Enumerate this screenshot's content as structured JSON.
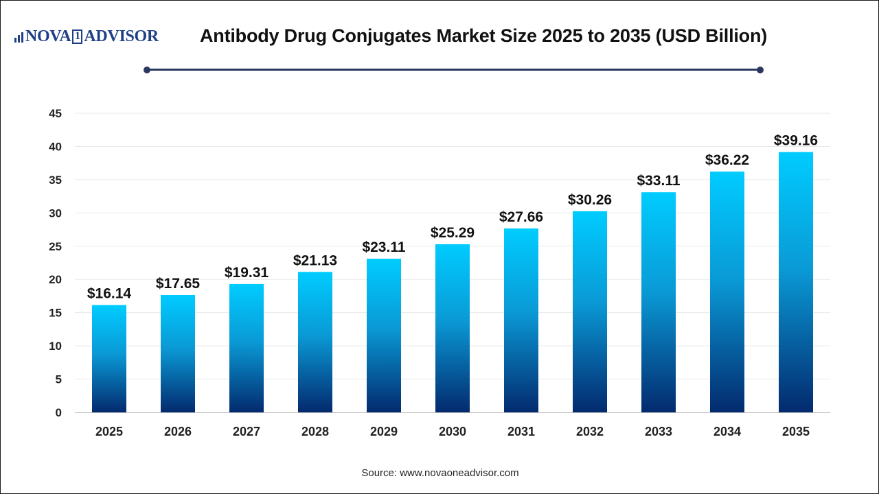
{
  "brand": {
    "name_left": "NOVA",
    "name_mid": "1",
    "name_right": "ADVISOR"
  },
  "chart_data": {
    "type": "bar",
    "title": "Antibody Drug Conjugates Market Size 2025 to 2035 (USD Billion)",
    "categories": [
      "2025",
      "2026",
      "2027",
      "2028",
      "2029",
      "2030",
      "2031",
      "2032",
      "2033",
      "2034",
      "2035"
    ],
    "values": [
      16.14,
      17.65,
      19.31,
      21.13,
      23.11,
      25.29,
      27.66,
      30.26,
      33.11,
      36.22,
      39.16
    ],
    "data_labels": [
      "$16.14",
      "$17.65",
      "$19.31",
      "$21.13",
      "$23.11",
      "$25.29",
      "$27.66",
      "$30.26",
      "$33.11",
      "$36.22",
      "$39.16"
    ],
    "yticks": [
      0,
      5,
      10,
      15,
      20,
      25,
      30,
      35,
      40,
      45
    ],
    "ylim": [
      0,
      45
    ],
    "xlabel": "",
    "ylabel": "",
    "grid": true,
    "bar_gradient": {
      "top": "#00ccff",
      "bottom": "#032a6e"
    }
  },
  "footer": {
    "source": "Source: www.novaoneadvisor.com"
  }
}
